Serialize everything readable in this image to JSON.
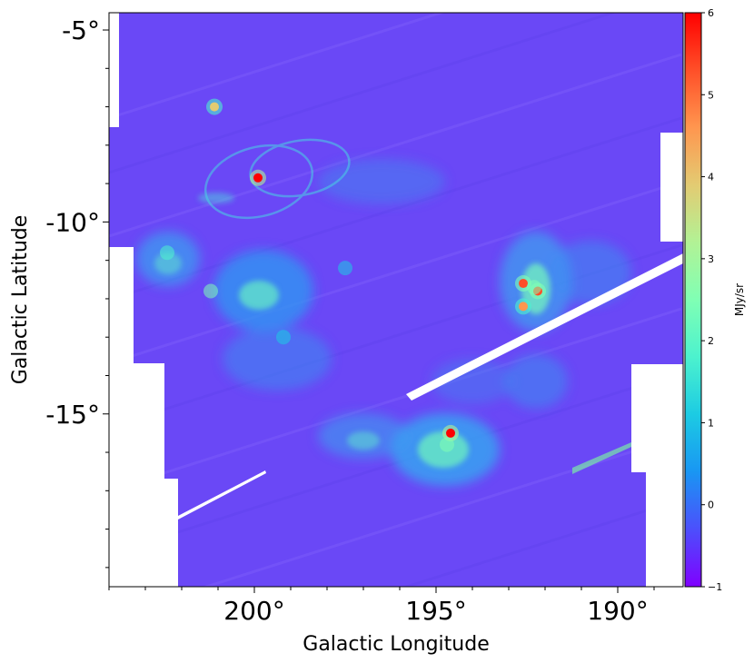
{
  "chart_data": {
    "type": "heatmap",
    "title": "",
    "xlabel": "Galactic Longitude",
    "ylabel": "Galactic Latitude",
    "xlim": [
      204.0,
      188.2
    ],
    "ylim": [
      -19.5,
      -4.55
    ],
    "x_ticks": [
      {
        "value": 200,
        "label": "200°"
      },
      {
        "value": 195,
        "label": "195°"
      },
      {
        "value": 190,
        "label": "190°"
      }
    ],
    "y_ticks": [
      {
        "value": -5,
        "label": "-5°"
      },
      {
        "value": -10,
        "label": "-10°"
      },
      {
        "value": -15,
        "label": "-15°"
      }
    ],
    "colorbar": {
      "label": "MJy/sr",
      "min": -1,
      "max": 6,
      "ticks": [
        {
          "value": 6,
          "label": "6"
        },
        {
          "value": 5,
          "label": "5"
        },
        {
          "value": 4,
          "label": "4"
        },
        {
          "value": 3,
          "label": "3"
        },
        {
          "value": 2,
          "label": "2"
        },
        {
          "value": 1,
          "label": "1"
        },
        {
          "value": 0,
          "label": "0"
        },
        {
          "value": -1,
          "label": "−1"
        }
      ],
      "colormap": "rainbow",
      "colors": [
        "#8000ff",
        "#4c4ffc",
        "#1996f3",
        "#1ccbe3",
        "#4cf2ce",
        "#80ffb4",
        "#b2f295",
        "#e3cb72",
        "#ff964f",
        "#ff4f28",
        "#ff0000"
      ]
    },
    "colors": {
      "background": "#6a48f6",
      "filament": "#3fa6ee",
      "bright_filament": "#52e6c8",
      "hot_spot": "#ff1a0a",
      "masked": "#ffffff"
    },
    "features": [
      {
        "type": "bright_source",
        "l": 199.9,
        "b": -8.85,
        "value": 6
      },
      {
        "type": "bright_source",
        "l": 194.6,
        "b": -15.5,
        "value": 6
      },
      {
        "type": "bright_source",
        "l": 192.2,
        "b": -11.8,
        "value": 5
      },
      {
        "type": "bright_source",
        "l": 192.6,
        "b": -12.2,
        "value": 4.5
      },
      {
        "type": "bright_source",
        "l": 192.6,
        "b": -11.6,
        "value": 5
      },
      {
        "type": "bright_source",
        "l": 201.1,
        "b": -7.0,
        "value": 4
      },
      {
        "type": "emission",
        "l": 201.2,
        "b": -11.8,
        "value": 2.2
      },
      {
        "type": "emission",
        "l": 197.5,
        "b": -11.2,
        "value": 1.2
      },
      {
        "type": "emission",
        "l": 194.7,
        "b": -15.8,
        "value": 2.5
      },
      {
        "type": "emission",
        "l": 192.3,
        "b": -11.7,
        "value": 2.5
      },
      {
        "type": "emission",
        "l": 202.4,
        "b": -10.8,
        "value": 2.0
      },
      {
        "type": "emission",
        "l": 199.2,
        "b": -13.0,
        "value": 1.2
      }
    ]
  }
}
